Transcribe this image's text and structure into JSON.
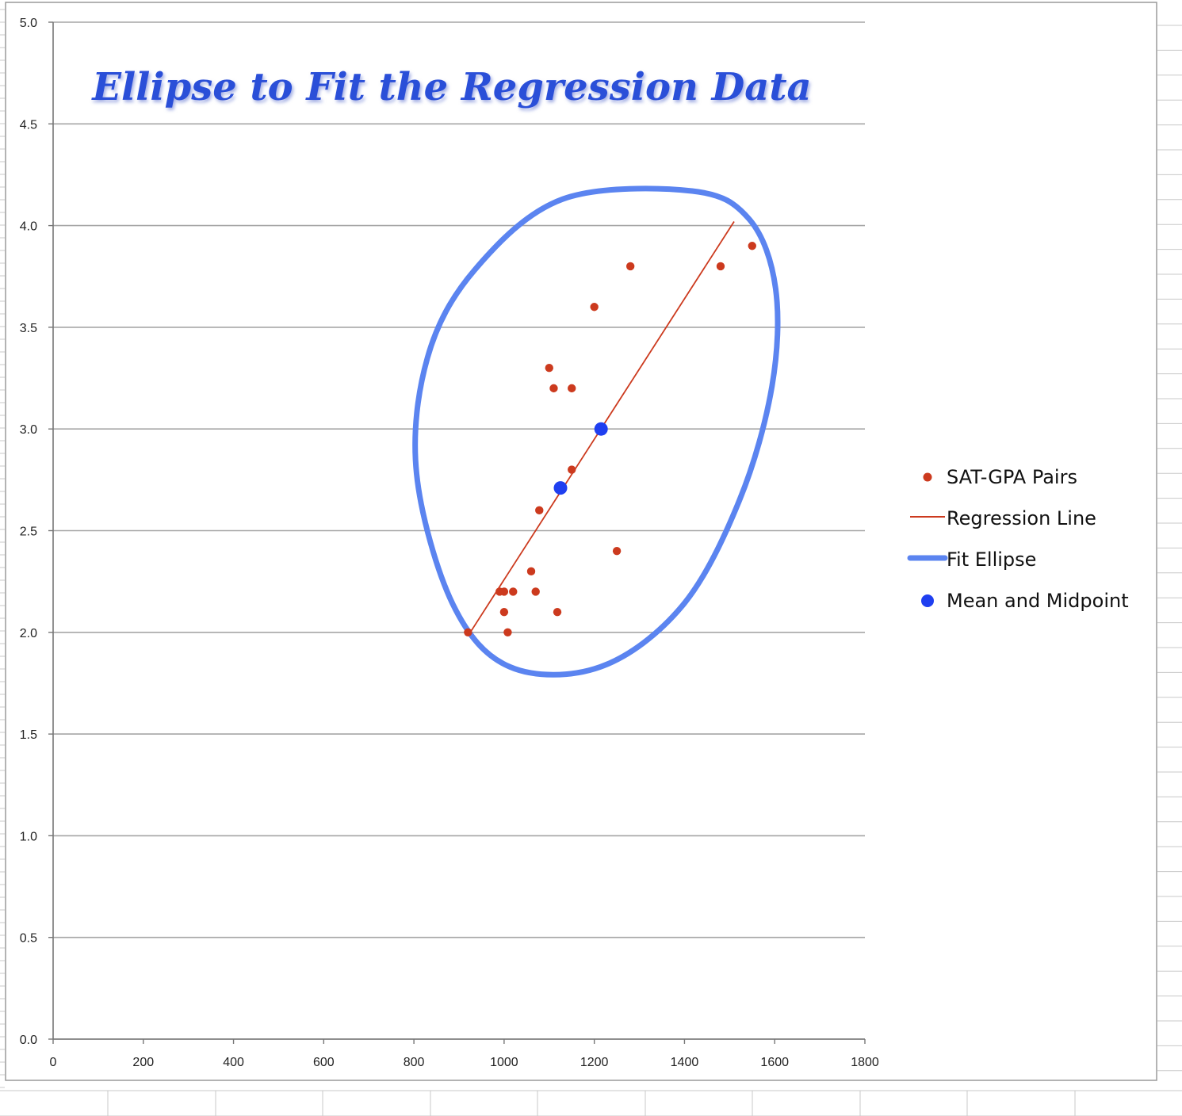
{
  "chart_data": {
    "type": "scatter",
    "title": "Ellipse to Fit the Regression Data",
    "xlabel": "",
    "ylabel": "",
    "xlim": [
      0,
      1800
    ],
    "ylim": [
      0,
      5
    ],
    "x_ticks": [
      "0",
      "200",
      "400",
      "600",
      "800",
      "1000",
      "1200",
      "1400",
      "1600",
      "1800"
    ],
    "y_ticks": [
      "0.0",
      "0.5",
      "1.0",
      "1.5",
      "2.0",
      "2.5",
      "3.0",
      "3.5",
      "4.0",
      "4.5",
      "5.0"
    ],
    "grid": "horizontal",
    "legend_position": "right",
    "series": [
      {
        "name": "SAT-GPA Pairs",
        "kind": "points",
        "color": "#cc3a1e",
        "points": [
          [
            920,
            2.0
          ],
          [
            990,
            2.2
          ],
          [
            1000,
            2.2
          ],
          [
            1020,
            2.2
          ],
          [
            1000,
            2.1
          ],
          [
            1008,
            2.0
          ],
          [
            1060,
            2.3
          ],
          [
            1070,
            2.2
          ],
          [
            1118,
            2.1
          ],
          [
            1078,
            2.6
          ],
          [
            1150,
            2.8
          ],
          [
            1100,
            3.3
          ],
          [
            1110,
            3.2
          ],
          [
            1150,
            3.2
          ],
          [
            1200,
            3.6
          ],
          [
            1280,
            3.8
          ],
          [
            1250,
            2.4
          ],
          [
            1480,
            3.8
          ],
          [
            1550,
            3.9
          ]
        ]
      },
      {
        "name": "Regression Line",
        "kind": "line",
        "color": "#cc3a1e",
        "points": [
          [
            925,
            2.0
          ],
          [
            1510,
            4.02
          ]
        ]
      },
      {
        "name": "Fit Ellipse",
        "kind": "ellipse",
        "color": "#5b84f0",
        "center": [
          1215,
          3.0
        ],
        "points": [
          [
            1417,
            4.17
          ],
          [
            1544,
            4.03
          ],
          [
            1602,
            3.69
          ],
          [
            1594,
            3.21
          ],
          [
            1522,
            2.65
          ],
          [
            1395,
            2.13
          ],
          [
            1213,
            1.83
          ],
          [
            1013,
            1.83
          ],
          [
            886,
            2.14
          ],
          [
            806,
            2.78
          ],
          [
            830,
            3.35
          ],
          [
            934,
            3.78
          ],
          [
            1130,
            4.13
          ]
        ]
      },
      {
        "name": "Mean and Midpoint",
        "kind": "points",
        "color": "#1f3ff0",
        "points": [
          [
            1125,
            2.71
          ],
          [
            1215,
            3.0
          ]
        ]
      }
    ]
  },
  "colors": {
    "title_fill": "#2c4fd8",
    "gridline": "#a6a6a6",
    "axis": "#777777",
    "spreadsheet_grid": "#c8c8c8"
  }
}
